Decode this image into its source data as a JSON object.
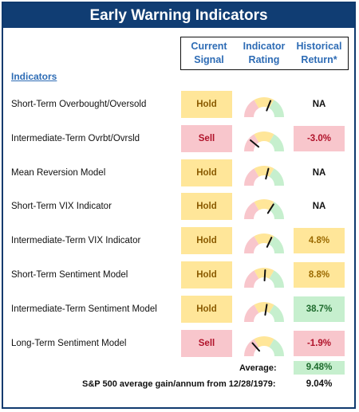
{
  "title": "Early Warning Indicators",
  "headers": {
    "signal": "Current Signal",
    "rating": "Indicator Rating",
    "return": "Historical Return*"
  },
  "indicators_label": "Indicators",
  "rows": [
    {
      "name": "Short-Term Overbought/Oversold",
      "signal": "Hold",
      "signal_type": "hold",
      "needle": 0.62,
      "return": "NA",
      "return_type": "na"
    },
    {
      "name": "Intermediate-Term Ovrbt/Ovrsld",
      "signal": "Sell",
      "signal_type": "sell",
      "needle": 0.22,
      "return": "-3.0%",
      "return_type": "neg"
    },
    {
      "name": "Mean Reversion Model",
      "signal": "Hold",
      "signal_type": "hold",
      "needle": 0.58,
      "return": "NA",
      "return_type": "na"
    },
    {
      "name": "Short-Term VIX Indicator",
      "signal": "Hold",
      "signal_type": "hold",
      "needle": 0.68,
      "return": "NA",
      "return_type": "na"
    },
    {
      "name": "Intermediate-Term VIX Indicator",
      "signal": "Hold",
      "signal_type": "hold",
      "needle": 0.64,
      "return": "4.8%",
      "return_type": "pos-yellow"
    },
    {
      "name": "Short-Term Sentiment Model",
      "signal": "Hold",
      "signal_type": "hold",
      "needle": 0.52,
      "return": "8.8%",
      "return_type": "pos-yellow"
    },
    {
      "name": "Intermediate-Term Sentiment Model",
      "signal": "Hold",
      "signal_type": "hold",
      "needle": 0.55,
      "return": "38.7%",
      "return_type": "pos-green"
    },
    {
      "name": "Long-Term Sentiment Model",
      "signal": "Sell",
      "signal_type": "sell",
      "needle": 0.27,
      "return": "-1.9%",
      "return_type": "neg"
    }
  ],
  "average": {
    "label": "Average:",
    "value": "9.48%"
  },
  "sp500": {
    "label": "S&P 500 average gain/annum from 12/28/1979:",
    "value": "9.04%"
  },
  "colors": {
    "red_zone": "#f8c6cc",
    "yellow_zone": "#ffe699",
    "green_zone": "#c6efce",
    "needle": "#111111"
  }
}
